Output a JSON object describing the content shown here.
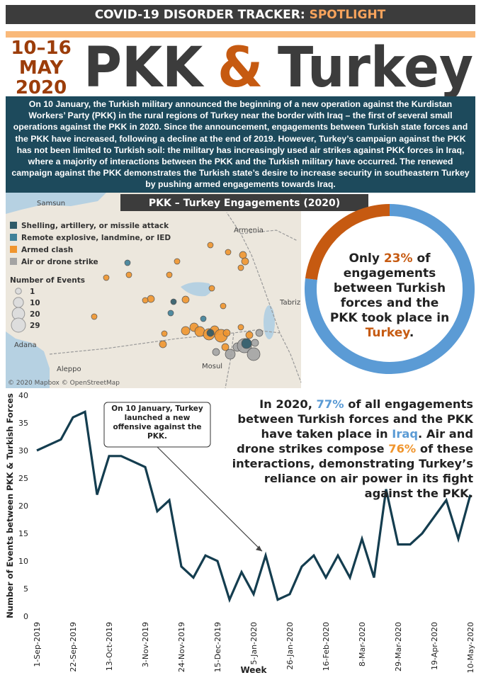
{
  "header": {
    "label": "COVID-19 DISORDER TRACKER: ",
    "highlight": "SPOTLIGHT"
  },
  "date": {
    "days": "10–16",
    "month": "MAY",
    "year": "2020"
  },
  "title": {
    "part1": "PKK",
    "amp": "&",
    "part2": "Turkey"
  },
  "intro": "On 10 January, the Turkish military announced the beginning of a new operation against the Kurdistan Workers’ Party (PKK) in the rural regions of Turkey near the border with Iraq – the first of several small operations against the PKK in 2020. Since the announcement, engagements between Turkish state forces and the PKK have increased, following a decline at the end of 2019. However, Turkey’s campaign against the PKK has not been limited to Turkish soil: the military has increasingly used air strikes against PKK forces in Iraq, where a majority of interactions between the PKK and the Turkish military have occurred. The renewed campaign against the PKK demonstrates the Turkish state’s desire to increase security in southeastern Turkey by pushing armed engagements towards Iraq.",
  "map": {
    "title": "PKK – Turkey Engagements (2020)",
    "legend": [
      {
        "label": "Shelling, artillery, or missile attack",
        "color": "#2f5b69"
      },
      {
        "label": "Remote explosive, landmine, or IED",
        "color": "#3f8199"
      },
      {
        "label": "Armed clash",
        "color": "#f0952d"
      },
      {
        "label": "Air or drone strike",
        "color": "#a3a3a3"
      }
    ],
    "size_legend": {
      "title": "Number of Events",
      "values": [
        1,
        10,
        20,
        29
      ]
    },
    "places": [
      "Samsun",
      "Armenia",
      "Tabriz",
      "Adana",
      "Aleppo",
      "Mosul"
    ],
    "credit": "© 2020 Mapbox © OpenStreetMap"
  },
  "donut_text": [
    "Only ",
    "23%",
    " of engagements between Turkish forces and the PKK took place in ",
    "Turkey",
    "."
  ],
  "iraq_text": [
    "In 2020, ",
    "77%",
    " of all engagements between Turkish forces and the PKK have taken place in ",
    "Iraq",
    ". Air and drone strikes compose ",
    "76%",
    " of these interactions, demonstrating Turkey’s reliance on air power in its fight against the PKK."
  ],
  "chart_data": [
    {
      "type": "pie",
      "values": [
        23,
        77
      ],
      "colors": [
        "#c65a11",
        "#5b9bd5"
      ]
    },
    {
      "type": "line",
      "color": "#143d4f",
      "ylabel": "Number of Events between PKK & Turkish Forces",
      "xlabel": "Week",
      "annotation": "On 10 January, Turkey launched a new offensive against the PKK.",
      "annotation_index": 19,
      "categories": [
        "1-Sep-2019",
        null,
        null,
        "22-Sep-2019",
        null,
        null,
        "13-Oct-2019",
        null,
        null,
        "3-Nov-2019",
        null,
        null,
        "24-Nov-2019",
        null,
        null,
        "15-Dec-2019",
        null,
        null,
        "5-Jan-2020",
        null,
        null,
        "26-Jan-2020",
        null,
        null,
        "16-Feb-2020",
        null,
        null,
        "8-Mar-2020",
        null,
        null,
        "29-Mar-2020",
        null,
        null,
        "19-Apr-2020",
        null,
        null,
        "10-May-2020"
      ],
      "values": [
        30,
        31,
        32,
        36,
        37,
        22,
        29,
        29,
        28,
        27,
        19,
        21,
        9,
        7,
        11,
        10,
        3,
        8,
        4,
        11,
        3,
        4,
        9,
        11,
        7,
        11,
        7,
        14,
        7,
        23,
        13,
        13,
        15,
        18,
        21,
        14,
        22
      ],
      "ylim": [
        0,
        40
      ],
      "yticks": [
        0,
        5,
        10,
        15,
        20,
        25,
        30,
        35,
        40
      ],
      "grid": false
    }
  ]
}
